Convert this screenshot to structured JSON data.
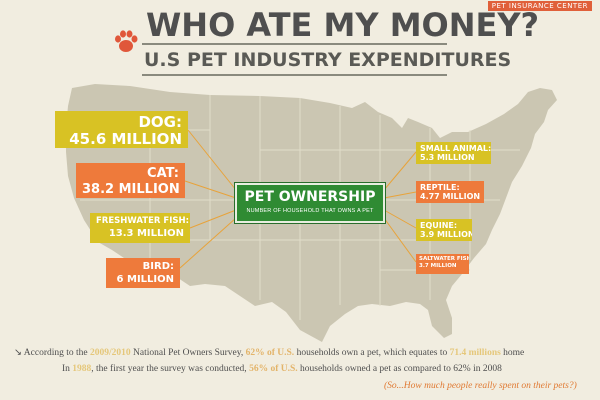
{
  "header": {
    "brand": "PET INSURANCE CENTER",
    "title": "WHO ATE MY MONEY?",
    "subtitle": "U.S PET INDUSTRY EXPENDITURES",
    "paw_color": "#e0573a"
  },
  "hub": {
    "title": "PET OWNERSHIP",
    "subtitle": "NUMBER OF HOUSEHOLD THAT OWNS A PET",
    "color": "#2f8b33"
  },
  "pets": [
    {
      "name": "DOG:",
      "value": "45.6 MILLION",
      "households_millions": 45.6,
      "color": "#d8c224"
    },
    {
      "name": "CAT:",
      "value": "38.2 MILLION",
      "households_millions": 38.2,
      "color": "#ee7a3b"
    },
    {
      "name": "FRESHWATER FISH:",
      "value": "13.3 MILLION",
      "households_millions": 13.3,
      "color": "#d8c224"
    },
    {
      "name": "BIRD:",
      "value": "6 MILLION",
      "households_millions": 6,
      "color": "#ee7a3b"
    },
    {
      "name": "SMALL ANIMAL:",
      "value": "5.3 MILLION",
      "households_millions": 5.3,
      "color": "#d8c224"
    },
    {
      "name": "REPTILE:",
      "value": "4.77 MILLION",
      "households_millions": 4.77,
      "color": "#ee7a3b"
    },
    {
      "name": "EQUINE:",
      "value": "3.9 MILLION",
      "households_millions": 3.9,
      "color": "#d8c224"
    },
    {
      "name": "SALTWATER FISH:",
      "value": "3.7 MILLION",
      "households_millions": 3.7,
      "color": "#ee7a3b"
    }
  ],
  "footnote": {
    "l1_a": "↘ According to the ",
    "l1_b": "2009/2010",
    "l1_c": " National Pet Owners Survey, ",
    "l1_d": "62% of U.S.",
    "l1_e": " households own a pet, which equates to ",
    "l1_f": "71.4 millions",
    "l1_g": " home",
    "l2_a": "In ",
    "l2_b": "1988",
    "l2_c": ", the first year the survey was conducted, ",
    "l2_d": "56% of U.S.",
    "l2_e": " households owned a pet as compared to 62% in 2008",
    "l3": "(So...How much people really spent on their pets?)"
  }
}
